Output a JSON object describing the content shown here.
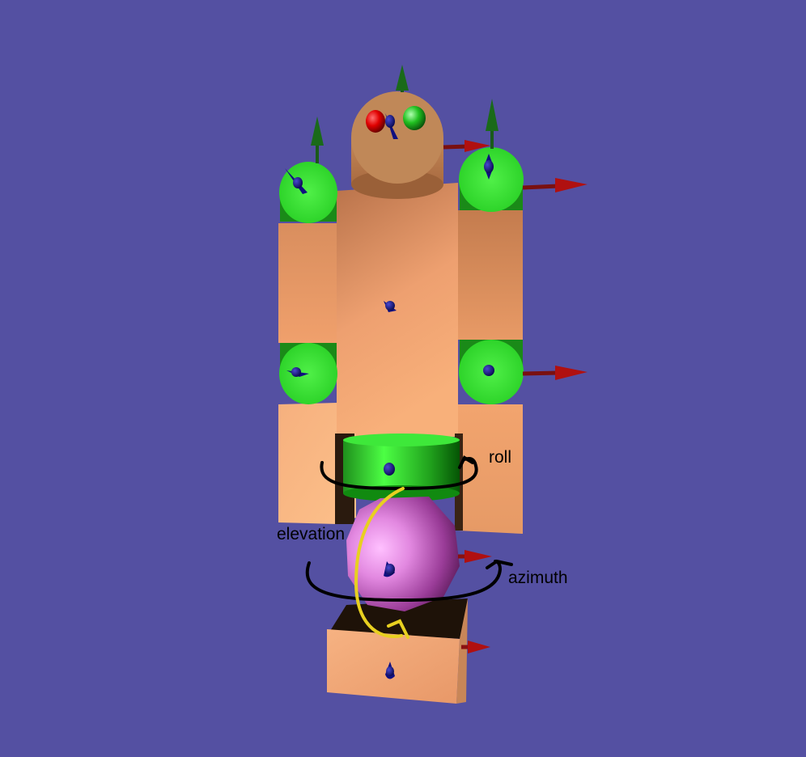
{
  "colors": {
    "background": "#5450a2",
    "skin": "#e8a06a",
    "joint_green": "#3ee83a",
    "hip_purple": "#d878d8",
    "axis_red": "#b01010",
    "axis_green": "#1a6a1a",
    "axis_blue": "#101080",
    "annotation_black": "#000000",
    "annotation_yellow": "#e8d020"
  },
  "annotations": {
    "roll": "roll",
    "elevation": "elevation",
    "azimuth": "azimuth"
  }
}
